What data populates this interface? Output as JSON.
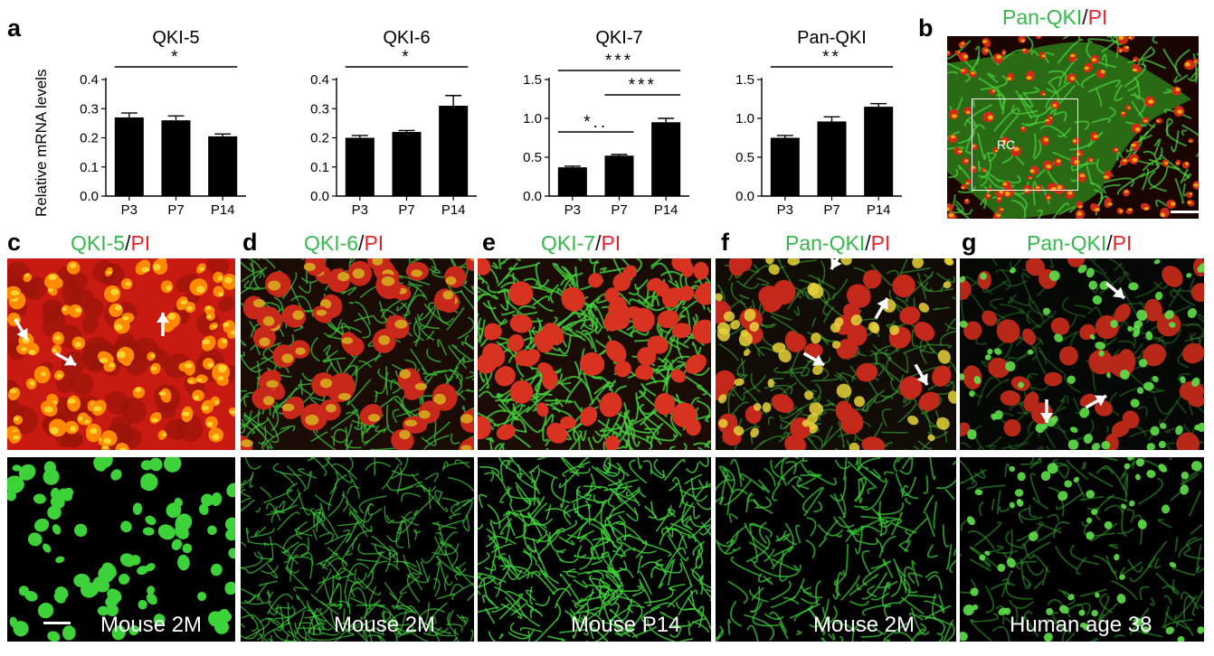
{
  "figure": {
    "panel_letters": {
      "a": "a",
      "b": "b",
      "c": "c",
      "d": "d",
      "e": "e",
      "f": "f",
      "g": "g"
    },
    "ylabel": "Relative mRNA levels",
    "b_title": {
      "green": "Pan-QKI",
      "slash": "/",
      "red": "PI"
    },
    "b_box_label": "RC",
    "c_title": {
      "green": "QKI-5",
      "slash": "/",
      "red": "PI"
    },
    "d_title": {
      "green": "QKI-6",
      "slash": "/",
      "red": "PI"
    },
    "e_title": {
      "green": "QKI-7",
      "slash": "/",
      "red": "PI"
    },
    "f_title": {
      "green": "Pan-QKI",
      "slash": "/",
      "red": "PI"
    },
    "g_title": {
      "green": "Pan-QKI",
      "slash": "/",
      "red": "PI"
    },
    "captions": {
      "c": "Mouse 2M",
      "d": "Mouse 2M",
      "e": "Mouse P14",
      "f": "Mouse 2M",
      "g": "Human age 38"
    },
    "colors": {
      "green": "#35b84a",
      "red": "#e3242b",
      "bar": "#000000"
    }
  },
  "chart_data": [
    {
      "type": "bar",
      "title": "QKI-5",
      "categories": [
        "P3",
        "P7",
        "P14"
      ],
      "values": [
        0.27,
        0.26,
        0.205
      ],
      "errors": [
        0.015,
        0.015,
        0.008
      ],
      "ylim": [
        0,
        0.4
      ],
      "ticks": [
        "0.0",
        "0.1",
        "0.2",
        "0.3",
        "0.4"
      ],
      "tickvals": [
        0,
        0.1,
        0.2,
        0.3,
        0.4
      ],
      "ylabel": "Relative mRNA levels",
      "significance": [
        {
          "from": 0,
          "to": 2,
          "label": "*"
        }
      ]
    },
    {
      "type": "bar",
      "title": "QKI-6",
      "categories": [
        "P3",
        "P7",
        "P14"
      ],
      "values": [
        0.2,
        0.22,
        0.31
      ],
      "errors": [
        0.008,
        0.005,
        0.035
      ],
      "ylim": [
        0,
        0.4
      ],
      "ticks": [
        "0.0",
        "0.1",
        "0.2",
        "0.3",
        "0.4"
      ],
      "tickvals": [
        0,
        0.1,
        0.2,
        0.3,
        0.4
      ],
      "significance": [
        {
          "from": 0,
          "to": 2,
          "label": "*"
        }
      ]
    },
    {
      "type": "bar",
      "title": "QKI-7",
      "categories": [
        "P3",
        "P7",
        "P14"
      ],
      "values": [
        0.37,
        0.52,
        0.95
      ],
      "errors": [
        0.015,
        0.015,
        0.05
      ],
      "ylim": [
        0,
        1.5
      ],
      "ticks": [
        "0.0",
        "0.5",
        "1.0",
        "1.5"
      ],
      "tickvals": [
        0,
        0.5,
        1.0,
        1.5
      ],
      "significance": [
        {
          "from": 0,
          "to": 2,
          "label": "***"
        },
        {
          "from": 1,
          "to": 2,
          "label": "***"
        },
        {
          "from": 0,
          "to": 1,
          "label": "*.."
        }
      ]
    },
    {
      "type": "bar",
      "title": "Pan-QKI",
      "categories": [
        "P3",
        "P7",
        "P14"
      ],
      "values": [
        0.75,
        0.96,
        1.15
      ],
      "errors": [
        0.03,
        0.06,
        0.04
      ],
      "ylim": [
        0,
        1.5
      ],
      "ticks": [
        "0.0",
        "0.5",
        "1.0",
        "1.5"
      ],
      "tickvals": [
        0,
        0.5,
        1.0,
        1.5
      ],
      "significance": [
        {
          "from": 0,
          "to": 2,
          "label": "**"
        }
      ]
    }
  ]
}
